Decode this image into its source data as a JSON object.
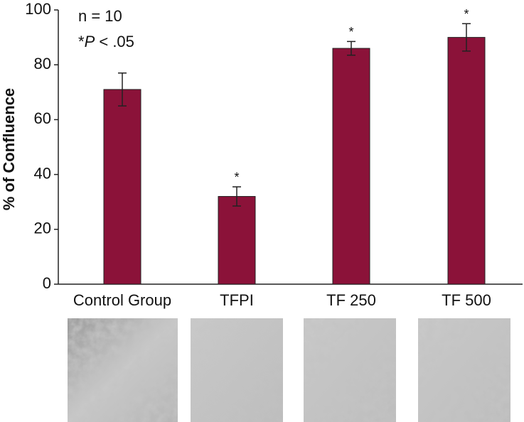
{
  "chart_data": {
    "type": "bar",
    "y_label": "% of Confluence",
    "annotation_n": "n = 10",
    "annotation_p": {
      "prefix": "*",
      "italic": "P",
      "suffix": " < .05"
    },
    "categories": [
      "Control Group",
      "TFPI",
      "TF 250",
      "TF 500"
    ],
    "values": [
      71,
      32,
      86,
      90
    ],
    "errors": [
      6,
      3.5,
      2.5,
      5
    ],
    "significant": [
      false,
      true,
      true,
      true
    ],
    "significance_marker": "*",
    "color": "#8b1239",
    "ylim": [
      0,
      100
    ],
    "yticks": [
      0,
      20,
      40,
      60,
      80,
      100
    ],
    "grid": false
  }
}
